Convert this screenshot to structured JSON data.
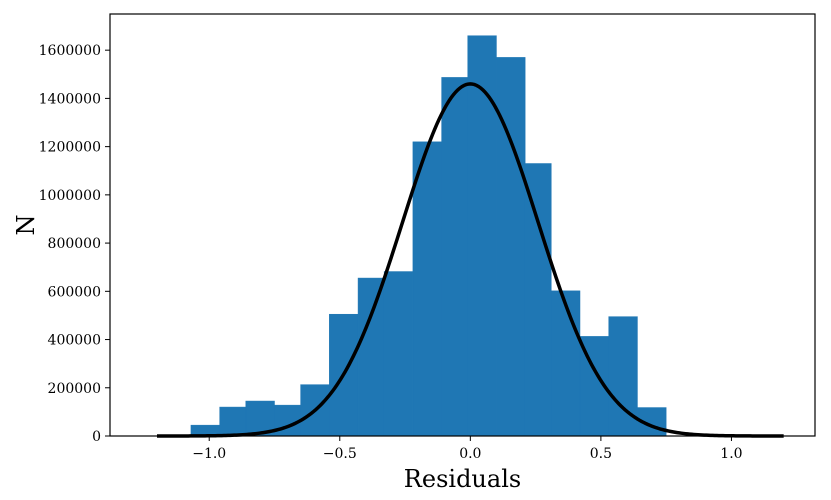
{
  "chart_data": {
    "type": "bar",
    "subtype": "histogram-with-fit",
    "xlabel": "Residuals",
    "ylabel": "N",
    "xlim": [
      -1.38,
      1.32
    ],
    "ylim": [
      0,
      1750000
    ],
    "xticks": [
      -1.0,
      -0.5,
      0.0,
      0.5,
      1.0
    ],
    "xtick_labels": [
      "−1.0",
      "−0.5",
      "0.0",
      "0.5",
      "1.0"
    ],
    "yticks": [
      0,
      200000,
      400000,
      600000,
      800000,
      1000000,
      1200000,
      1400000,
      1600000
    ],
    "ytick_labels": [
      "0",
      "200000",
      "400000",
      "600000",
      "800000",
      "1000000",
      "1200000",
      "1400000",
      "1600000"
    ],
    "bins": [
      {
        "x0": -1.07,
        "x1": -0.96,
        "value": 45000
      },
      {
        "x0": -0.96,
        "x1": -0.86,
        "value": 120000
      },
      {
        "x0": -0.86,
        "x1": -0.75,
        "value": 145000
      },
      {
        "x0": -0.75,
        "x1": -0.65,
        "value": 128000
      },
      {
        "x0": -0.65,
        "x1": -0.54,
        "value": 213000
      },
      {
        "x0": -0.54,
        "x1": -0.43,
        "value": 505000
      },
      {
        "x0": -0.43,
        "x1": -0.33,
        "value": 655000
      },
      {
        "x0": -0.33,
        "x1": -0.22,
        "value": 682000
      },
      {
        "x0": -0.22,
        "x1": -0.11,
        "value": 1220000
      },
      {
        "x0": -0.11,
        "x1": -0.01,
        "value": 1487000
      },
      {
        "x0": -0.01,
        "x1": 0.1,
        "value": 1660000
      },
      {
        "x0": 0.1,
        "x1": 0.21,
        "value": 1570000
      },
      {
        "x0": 0.21,
        "x1": 0.31,
        "value": 1130000
      },
      {
        "x0": 0.31,
        "x1": 0.42,
        "value": 602000
      },
      {
        "x0": 0.42,
        "x1": 0.53,
        "value": 413000
      },
      {
        "x0": 0.53,
        "x1": 0.64,
        "value": 495000
      },
      {
        "x0": 0.64,
        "x1": 0.75,
        "value": 118000
      }
    ],
    "fit": {
      "type": "gaussian",
      "mean": 0.0,
      "sigma": 0.26,
      "peak": 1460000,
      "x_range": [
        -1.2,
        1.2
      ]
    },
    "colors": {
      "bar": "#1f77b4",
      "fit": "#000000"
    },
    "grid": false,
    "legend": "none"
  }
}
